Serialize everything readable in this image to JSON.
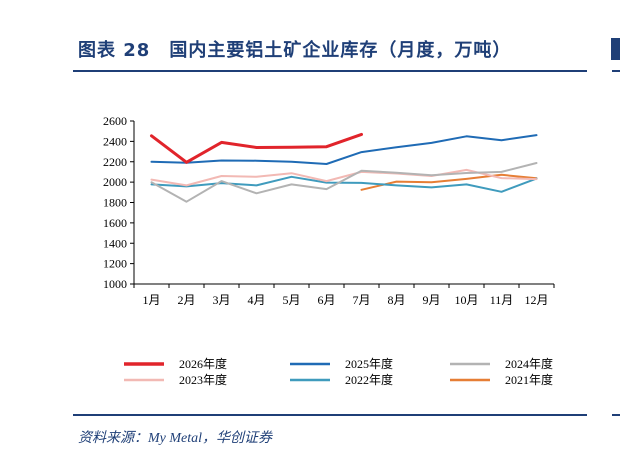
{
  "header": {
    "title": "图表 28　国内主要铝土矿企业库存（月度，万吨）"
  },
  "footer": {
    "source": "资料来源：My Metal，华创证券"
  },
  "chart_data": {
    "type": "line",
    "categories": [
      "1月",
      "2月",
      "3月",
      "4月",
      "5月",
      "6月",
      "7月",
      "8月",
      "9月",
      "10月",
      "11月",
      "12月"
    ],
    "ylim": [
      1000,
      2600
    ],
    "yticks": [
      1000,
      1200,
      1400,
      1600,
      1800,
      2000,
      2200,
      2400,
      2600
    ],
    "grid": false,
    "legend_position": "bottom",
    "series": [
      {
        "name": "2026年度",
        "color": "#e1242b",
        "width": 3,
        "values": [
          2455,
          2195,
          2390,
          2340,
          2342,
          2348,
          2468,
          null,
          null,
          null,
          null,
          null
        ]
      },
      {
        "name": "2025年度",
        "color": "#1f6bb5",
        "width": 2,
        "values": [
          2200,
          2190,
          2212,
          2210,
          2200,
          2178,
          2295,
          2342,
          2385,
          2450,
          2412,
          2462
        ]
      },
      {
        "name": "2024年度",
        "color": "#b3b3b3",
        "width": 2,
        "values": [
          1998,
          1808,
          2010,
          1890,
          1978,
          1932,
          2112,
          2092,
          2068,
          2090,
          2100,
          2188
        ]
      },
      {
        "name": "2023年度",
        "color": "#f2b9b4",
        "width": 2,
        "values": [
          2025,
          1968,
          2060,
          2052,
          2088,
          2010,
          2100,
          2085,
          2060,
          2120,
          2040,
          2030
        ]
      },
      {
        "name": "2022年度",
        "color": "#3f9bbd",
        "width": 2,
        "values": [
          1978,
          1958,
          1990,
          1968,
          2052,
          1995,
          1992,
          1968,
          1948,
          1978,
          1905,
          2035
        ]
      },
      {
        "name": "2021年度",
        "color": "#e67e35",
        "width": 2,
        "values": [
          null,
          null,
          null,
          null,
          null,
          null,
          1925,
          2005,
          1998,
          2032,
          2072,
          2038
        ]
      }
    ]
  }
}
